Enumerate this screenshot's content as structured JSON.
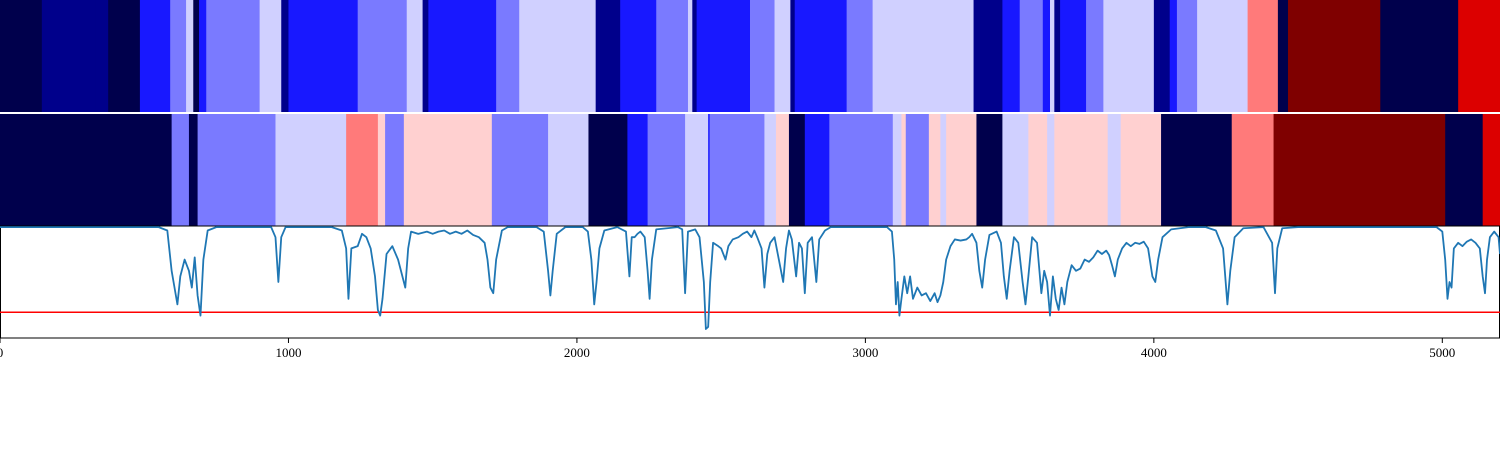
{
  "chart_data": {
    "type": "heatmap",
    "title": "",
    "xlabel": "",
    "ylabel": "",
    "xlim": [
      0,
      5200
    ],
    "xticks": [
      0,
      1000,
      2000,
      3000,
      4000,
      5000
    ],
    "colormap": {
      "name": "seismic",
      "levels": {
        "-3": "#00004c",
        "-2": "#00008b",
        "-1": "#1818ff",
        "0": "#7a7aff",
        "1": "#d0d0ff",
        "2": "#ffd0d0",
        "3": "#ff7a7a",
        "4": "#dc0000",
        "5": "#7f0000"
      }
    },
    "heat_rows": [
      {
        "segments": [
          [
            0,
            145,
            -3
          ],
          [
            145,
            330,
            -2
          ],
          [
            330,
            375,
            -2
          ],
          [
            375,
            485,
            -3
          ],
          [
            485,
            590,
            -1
          ],
          [
            590,
            645,
            0
          ],
          [
            645,
            670,
            1
          ],
          [
            670,
            690,
            -3
          ],
          [
            690,
            715,
            -1
          ],
          [
            715,
            900,
            0
          ],
          [
            900,
            975,
            1
          ],
          [
            975,
            1000,
            -2
          ],
          [
            1000,
            1240,
            -1
          ],
          [
            1240,
            1410,
            0
          ],
          [
            1410,
            1465,
            1
          ],
          [
            1465,
            1485,
            -2
          ],
          [
            1485,
            1720,
            -1
          ],
          [
            1720,
            1800,
            0
          ],
          [
            1800,
            2065,
            1
          ],
          [
            2065,
            2150,
            -2
          ],
          [
            2150,
            2175,
            -1
          ],
          [
            2175,
            2275,
            -1
          ],
          [
            2275,
            2385,
            0
          ],
          [
            2385,
            2400,
            1
          ],
          [
            2400,
            2415,
            -2
          ],
          [
            2415,
            2600,
            -1
          ],
          [
            2600,
            2685,
            0
          ],
          [
            2685,
            2740,
            1
          ],
          [
            2740,
            2755,
            -2
          ],
          [
            2755,
            2935,
            -1
          ],
          [
            2935,
            3025,
            0
          ],
          [
            3025,
            3375,
            1
          ],
          [
            3375,
            3475,
            -2
          ],
          [
            3475,
            3535,
            -1
          ],
          [
            3535,
            3615,
            0
          ],
          [
            3615,
            3640,
            -1
          ],
          [
            3640,
            3655,
            1
          ],
          [
            3655,
            3675,
            -2
          ],
          [
            3675,
            3765,
            -1
          ],
          [
            3765,
            3825,
            0
          ],
          [
            3825,
            4000,
            1
          ],
          [
            4000,
            4055,
            -2
          ],
          [
            4055,
            4080,
            -1
          ],
          [
            4080,
            4150,
            0
          ],
          [
            4150,
            4325,
            1
          ],
          [
            4325,
            4430,
            3
          ],
          [
            4430,
            4465,
            -3
          ],
          [
            4465,
            4785,
            5
          ],
          [
            4785,
            5055,
            -3
          ],
          [
            5055,
            5200,
            4
          ]
        ]
      },
      {
        "segments": [
          [
            0,
            595,
            -3
          ],
          [
            595,
            655,
            0
          ],
          [
            655,
            685,
            -3
          ],
          [
            685,
            955,
            0
          ],
          [
            955,
            1200,
            1
          ],
          [
            1200,
            1310,
            3
          ],
          [
            1310,
            1335,
            2
          ],
          [
            1335,
            1400,
            0
          ],
          [
            1400,
            1705,
            2
          ],
          [
            1705,
            1900,
            0
          ],
          [
            1900,
            2040,
            1
          ],
          [
            2040,
            2175,
            -3
          ],
          [
            2175,
            2245,
            -1
          ],
          [
            2245,
            2375,
            0
          ],
          [
            2375,
            2455,
            1
          ],
          [
            2455,
            2460,
            -1
          ],
          [
            2460,
            2650,
            0
          ],
          [
            2650,
            2690,
            1
          ],
          [
            2690,
            2735,
            2
          ],
          [
            2735,
            2790,
            -3
          ],
          [
            2790,
            2875,
            -1
          ],
          [
            2875,
            3095,
            0
          ],
          [
            3095,
            3125,
            1
          ],
          [
            3125,
            3140,
            2
          ],
          [
            3140,
            3220,
            0
          ],
          [
            3220,
            3260,
            2
          ],
          [
            3260,
            3280,
            1
          ],
          [
            3280,
            3385,
            2
          ],
          [
            3385,
            3475,
            -3
          ],
          [
            3475,
            3565,
            1
          ],
          [
            3565,
            3630,
            2
          ],
          [
            3630,
            3655,
            1
          ],
          [
            3655,
            3840,
            2
          ],
          [
            3840,
            3885,
            1
          ],
          [
            3885,
            4025,
            2
          ],
          [
            4025,
            4270,
            -3
          ],
          [
            4270,
            4415,
            3
          ],
          [
            4415,
            5010,
            5
          ],
          [
            5010,
            5140,
            -3
          ],
          [
            5140,
            5200,
            4
          ]
        ]
      }
    ],
    "line_series": {
      "name": "",
      "color": "#1f77b4",
      "ylim": [
        0,
        1
      ],
      "points": [
        [
          0,
          0.99
        ],
        [
          550,
          0.99
        ],
        [
          580,
          0.96
        ],
        [
          595,
          0.6
        ],
        [
          605,
          0.45
        ],
        [
          615,
          0.3
        ],
        [
          625,
          0.55
        ],
        [
          640,
          0.7
        ],
        [
          655,
          0.6
        ],
        [
          665,
          0.45
        ],
        [
          675,
          0.72
        ],
        [
          685,
          0.38
        ],
        [
          695,
          0.2
        ],
        [
          705,
          0.7
        ],
        [
          720,
          0.96
        ],
        [
          750,
          0.99
        ],
        [
          940,
          0.99
        ],
        [
          955,
          0.9
        ],
        [
          965,
          0.5
        ],
        [
          975,
          0.9
        ],
        [
          990,
          0.99
        ],
        [
          1150,
          0.99
        ],
        [
          1185,
          0.96
        ],
        [
          1200,
          0.8
        ],
        [
          1208,
          0.35
        ],
        [
          1218,
          0.8
        ],
        [
          1240,
          0.82
        ],
        [
          1255,
          0.93
        ],
        [
          1270,
          0.9
        ],
        [
          1285,
          0.8
        ],
        [
          1300,
          0.55
        ],
        [
          1310,
          0.25
        ],
        [
          1318,
          0.2
        ],
        [
          1326,
          0.35
        ],
        [
          1340,
          0.75
        ],
        [
          1360,
          0.82
        ],
        [
          1380,
          0.7
        ],
        [
          1395,
          0.55
        ],
        [
          1405,
          0.45
        ],
        [
          1415,
          0.8
        ],
        [
          1425,
          0.95
        ],
        [
          1450,
          0.93
        ],
        [
          1480,
          0.95
        ],
        [
          1500,
          0.93
        ],
        [
          1520,
          0.95
        ],
        [
          1540,
          0.96
        ],
        [
          1560,
          0.93
        ],
        [
          1580,
          0.95
        ],
        [
          1600,
          0.93
        ],
        [
          1620,
          0.96
        ],
        [
          1640,
          0.92
        ],
        [
          1660,
          0.9
        ],
        [
          1680,
          0.85
        ],
        [
          1690,
          0.7
        ],
        [
          1700,
          0.45
        ],
        [
          1710,
          0.4
        ],
        [
          1720,
          0.7
        ],
        [
          1740,
          0.96
        ],
        [
          1760,
          0.99
        ],
        [
          1860,
          0.99
        ],
        [
          1885,
          0.95
        ],
        [
          1900,
          0.6
        ],
        [
          1908,
          0.38
        ],
        [
          1916,
          0.6
        ],
        [
          1930,
          0.93
        ],
        [
          1960,
          0.99
        ],
        [
          2020,
          0.99
        ],
        [
          2038,
          0.95
        ],
        [
          2050,
          0.7
        ],
        [
          2060,
          0.3
        ],
        [
          2068,
          0.5
        ],
        [
          2078,
          0.8
        ],
        [
          2095,
          0.96
        ],
        [
          2140,
          0.99
        ],
        [
          2170,
          0.95
        ],
        [
          2182,
          0.55
        ],
        [
          2190,
          0.9
        ],
        [
          2200,
          0.9
        ],
        [
          2210,
          0.93
        ],
        [
          2220,
          0.95
        ],
        [
          2235,
          0.9
        ],
        [
          2245,
          0.6
        ],
        [
          2252,
          0.35
        ],
        [
          2260,
          0.7
        ],
        [
          2275,
          0.97
        ],
        [
          2350,
          0.99
        ],
        [
          2365,
          0.97
        ],
        [
          2375,
          0.4
        ],
        [
          2385,
          0.95
        ],
        [
          2410,
          0.97
        ],
        [
          2425,
          0.9
        ],
        [
          2440,
          0.5
        ],
        [
          2447,
          0.08
        ],
        [
          2455,
          0.1
        ],
        [
          2462,
          0.5
        ],
        [
          2472,
          0.85
        ],
        [
          2490,
          0.82
        ],
        [
          2500,
          0.8
        ],
        [
          2515,
          0.7
        ],
        [
          2525,
          0.82
        ],
        [
          2540,
          0.88
        ],
        [
          2560,
          0.9
        ],
        [
          2575,
          0.93
        ],
        [
          2590,
          0.95
        ],
        [
          2605,
          0.9
        ],
        [
          2615,
          0.96
        ],
        [
          2625,
          0.9
        ],
        [
          2640,
          0.8
        ],
        [
          2650,
          0.45
        ],
        [
          2660,
          0.75
        ],
        [
          2670,
          0.85
        ],
        [
          2685,
          0.9
        ],
        [
          2700,
          0.7
        ],
        [
          2715,
          0.5
        ],
        [
          2725,
          0.8
        ],
        [
          2735,
          0.96
        ],
        [
          2745,
          0.88
        ],
        [
          2760,
          0.55
        ],
        [
          2770,
          0.85
        ],
        [
          2780,
          0.8
        ],
        [
          2790,
          0.4
        ],
        [
          2800,
          0.85
        ],
        [
          2815,
          0.9
        ],
        [
          2830,
          0.5
        ],
        [
          2840,
          0.88
        ],
        [
          2860,
          0.96
        ],
        [
          2880,
          0.99
        ],
        [
          3075,
          0.99
        ],
        [
          3092,
          0.95
        ],
        [
          3100,
          0.7
        ],
        [
          3106,
          0.3
        ],
        [
          3112,
          0.5
        ],
        [
          3118,
          0.2
        ],
        [
          3125,
          0.35
        ],
        [
          3135,
          0.55
        ],
        [
          3145,
          0.4
        ],
        [
          3155,
          0.55
        ],
        [
          3165,
          0.35
        ],
        [
          3180,
          0.45
        ],
        [
          3195,
          0.38
        ],
        [
          3210,
          0.4
        ],
        [
          3225,
          0.33
        ],
        [
          3240,
          0.4
        ],
        [
          3250,
          0.32
        ],
        [
          3260,
          0.38
        ],
        [
          3270,
          0.5
        ],
        [
          3280,
          0.7
        ],
        [
          3295,
          0.82
        ],
        [
          3310,
          0.88
        ],
        [
          3330,
          0.87
        ],
        [
          3350,
          0.88
        ],
        [
          3360,
          0.9
        ],
        [
          3370,
          0.93
        ],
        [
          3385,
          0.85
        ],
        [
          3395,
          0.6
        ],
        [
          3405,
          0.45
        ],
        [
          3415,
          0.7
        ],
        [
          3430,
          0.92
        ],
        [
          3455,
          0.95
        ],
        [
          3470,
          0.85
        ],
        [
          3480,
          0.55
        ],
        [
          3490,
          0.35
        ],
        [
          3500,
          0.6
        ],
        [
          3515,
          0.9
        ],
        [
          3530,
          0.85
        ],
        [
          3545,
          0.5
        ],
        [
          3555,
          0.3
        ],
        [
          3565,
          0.55
        ],
        [
          3578,
          0.9
        ],
        [
          3595,
          0.85
        ],
        [
          3610,
          0.4
        ],
        [
          3620,
          0.6
        ],
        [
          3630,
          0.5
        ],
        [
          3640,
          0.2
        ],
        [
          3650,
          0.55
        ],
        [
          3660,
          0.35
        ],
        [
          3670,
          0.25
        ],
        [
          3680,
          0.45
        ],
        [
          3690,
          0.3
        ],
        [
          3700,
          0.5
        ],
        [
          3715,
          0.65
        ],
        [
          3730,
          0.6
        ],
        [
          3745,
          0.62
        ],
        [
          3760,
          0.7
        ],
        [
          3775,
          0.68
        ],
        [
          3790,
          0.72
        ],
        [
          3805,
          0.78
        ],
        [
          3820,
          0.75
        ],
        [
          3835,
          0.78
        ],
        [
          3845,
          0.74
        ],
        [
          3855,
          0.65
        ],
        [
          3865,
          0.55
        ],
        [
          3875,
          0.7
        ],
        [
          3890,
          0.8
        ],
        [
          3905,
          0.85
        ],
        [
          3920,
          0.82
        ],
        [
          3935,
          0.85
        ],
        [
          3950,
          0.84
        ],
        [
          3965,
          0.86
        ],
        [
          3980,
          0.8
        ],
        [
          3995,
          0.55
        ],
        [
          4005,
          0.5
        ],
        [
          4015,
          0.7
        ],
        [
          4030,
          0.9
        ],
        [
          4060,
          0.97
        ],
        [
          4120,
          0.99
        ],
        [
          4180,
          0.99
        ],
        [
          4215,
          0.96
        ],
        [
          4240,
          0.8
        ],
        [
          4255,
          0.3
        ],
        [
          4265,
          0.6
        ],
        [
          4280,
          0.9
        ],
        [
          4310,
          0.98
        ],
        [
          4380,
          0.99
        ],
        [
          4410,
          0.85
        ],
        [
          4420,
          0.4
        ],
        [
          4428,
          0.8
        ],
        [
          4445,
          0.98
        ],
        [
          4500,
          0.99
        ],
        [
          4980,
          0.99
        ],
        [
          5000,
          0.95
        ],
        [
          5010,
          0.7
        ],
        [
          5018,
          0.35
        ],
        [
          5025,
          0.5
        ],
        [
          5032,
          0.45
        ],
        [
          5040,
          0.8
        ],
        [
          5055,
          0.85
        ],
        [
          5070,
          0.82
        ],
        [
          5085,
          0.86
        ],
        [
          5100,
          0.88
        ],
        [
          5115,
          0.85
        ],
        [
          5130,
          0.8
        ],
        [
          5140,
          0.55
        ],
        [
          5148,
          0.4
        ],
        [
          5155,
          0.7
        ],
        [
          5165,
          0.9
        ],
        [
          5180,
          0.95
        ],
        [
          5195,
          0.9
        ],
        [
          5200,
          0.75
        ]
      ]
    },
    "threshold": {
      "y": 0.23,
      "color": "#ff0000"
    }
  }
}
